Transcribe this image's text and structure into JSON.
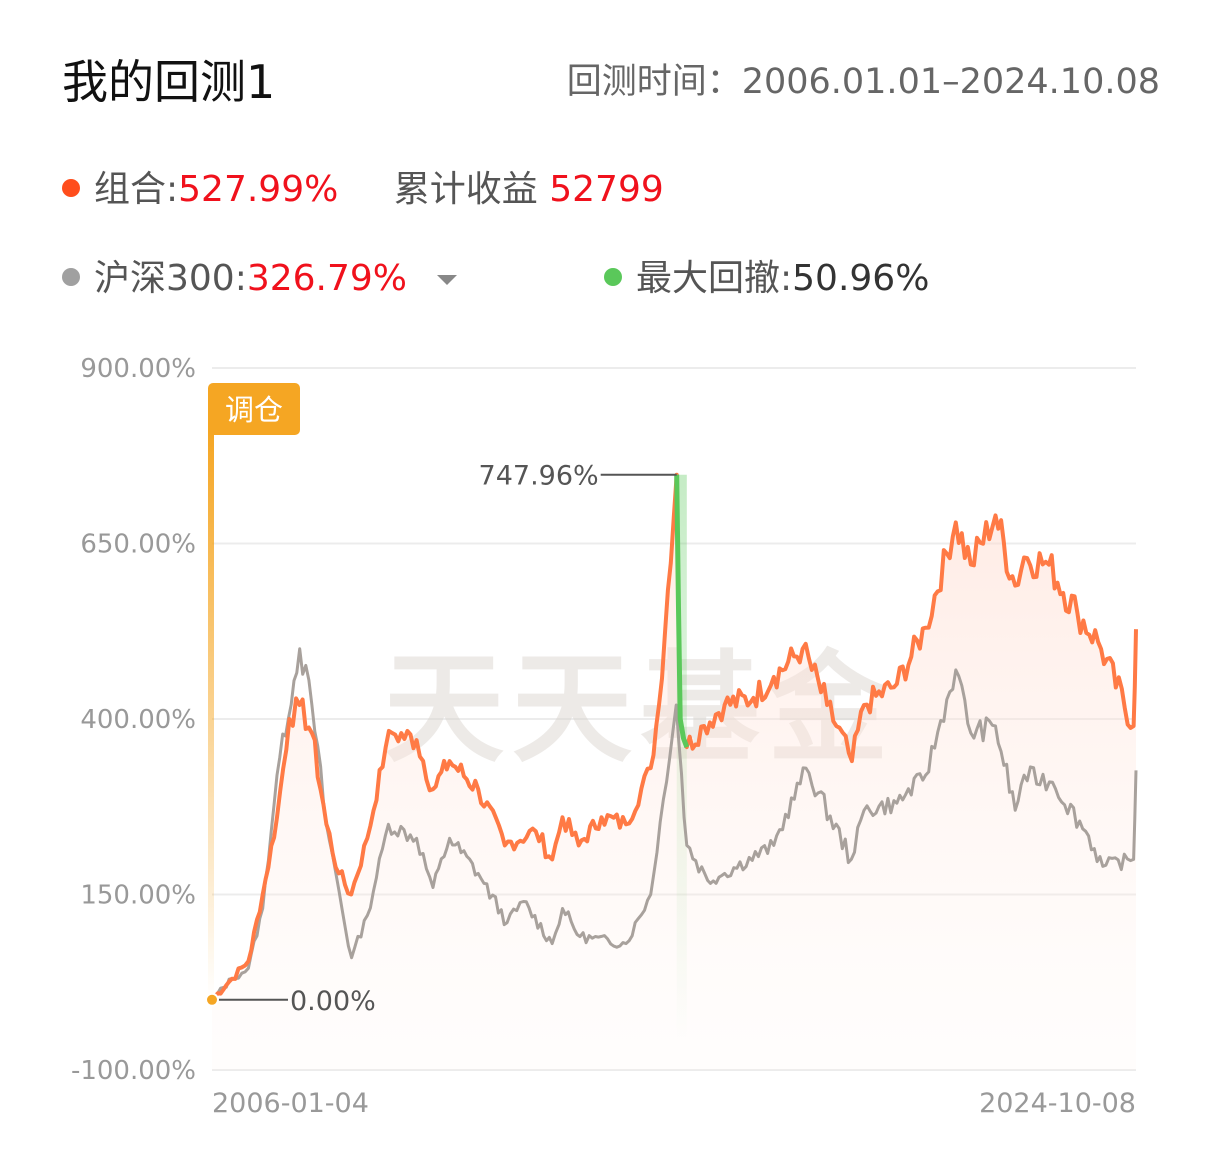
{
  "header": {
    "title": "我的回测1",
    "period_label": "回测时间：",
    "period_value": "2006.01.01–2024.10.08"
  },
  "legend": {
    "portfolio": {
      "label": "组合:",
      "value": "527.99%",
      "color": "#ff4d1c"
    },
    "cumulative": {
      "label": "累计收益",
      "value": "52799"
    },
    "benchmark": {
      "label": "沪深300:",
      "value": "326.79%",
      "color": "#a0a0a0",
      "dropdown_icon": "caret-down-icon"
    },
    "max_drawdown": {
      "label": "最大回撤:",
      "value": "50.96%",
      "color": "#5ac85a"
    }
  },
  "chart_data": {
    "type": "line",
    "x_start": "2006-01-04",
    "x_end": "2024-10-08",
    "xticks": [
      "2006-01-04",
      "2024-10-08"
    ],
    "ylim": [
      -100,
      900
    ],
    "yticks": [
      900,
      650,
      400,
      150,
      -100
    ],
    "ytick_labels": [
      "900.00%",
      "650.00%",
      "400.00%",
      "150.00%",
      "-100.00%"
    ],
    "watermark": "天天基金",
    "rebalance_tag": "调仓",
    "annotations": {
      "max_label": "747.96%",
      "start_label": "0.00%"
    },
    "colors": {
      "portfolio": "#ff7a45",
      "benchmark": "#a8a19c",
      "drawdown": "#5ac85a",
      "tag": "#f5a623"
    },
    "series": [
      {
        "name": "组合",
        "points": [
          [
            "2006-01-04",
            0
          ],
          [
            "2006-06-01",
            30
          ],
          [
            "2006-10-01",
            55
          ],
          [
            "2007-01-15",
            150
          ],
          [
            "2007-05-01",
            260
          ],
          [
            "2007-08-01",
            400
          ],
          [
            "2007-10-15",
            420
          ],
          [
            "2008-01-15",
            380
          ],
          [
            "2008-05-01",
            250
          ],
          [
            "2008-08-01",
            180
          ],
          [
            "2008-11-01",
            150
          ],
          [
            "2009-03-01",
            230
          ],
          [
            "2009-07-15",
            360
          ],
          [
            "2009-09-01",
            380
          ],
          [
            "2010-03-01",
            370
          ],
          [
            "2010-07-01",
            300
          ],
          [
            "2010-11-01",
            340
          ],
          [
            "2011-06-01",
            300
          ],
          [
            "2011-12-15",
            220
          ],
          [
            "2012-08-01",
            240
          ],
          [
            "2012-12-01",
            200
          ],
          [
            "2013-02-15",
            260
          ],
          [
            "2013-06-15",
            220
          ],
          [
            "2013-12-01",
            260
          ],
          [
            "2014-06-01",
            250
          ],
          [
            "2014-12-01",
            330
          ],
          [
            "2015-02-01",
            420
          ],
          [
            "2015-06-12",
            747.96
          ],
          [
            "2015-07-08",
            400
          ],
          [
            "2015-08-26",
            360
          ],
          [
            "2016-01-01",
            390
          ],
          [
            "2016-06-01",
            420
          ],
          [
            "2017-01-01",
            430
          ],
          [
            "2017-06-01",
            460
          ],
          [
            "2018-01-01",
            500
          ],
          [
            "2018-07-01",
            420
          ],
          [
            "2019-01-01",
            340
          ],
          [
            "2019-04-01",
            420
          ],
          [
            "2019-12-01",
            450
          ],
          [
            "2020-07-01",
            530
          ],
          [
            "2021-02-10",
            680
          ],
          [
            "2021-06-01",
            620
          ],
          [
            "2021-12-01",
            690
          ],
          [
            "2022-04-26",
            590
          ],
          [
            "2022-07-01",
            630
          ],
          [
            "2023-01-01",
            620
          ],
          [
            "2023-08-01",
            550
          ],
          [
            "2024-01-01",
            510
          ],
          [
            "2024-09-20",
            390
          ],
          [
            "2024-10-08",
            527.99
          ]
        ]
      },
      {
        "name": "沪深300",
        "points": [
          [
            "2006-01-04",
            0
          ],
          [
            "2006-06-01",
            30
          ],
          [
            "2006-10-01",
            45
          ],
          [
            "2007-01-15",
            130
          ],
          [
            "2007-05-01",
            320
          ],
          [
            "2007-10-16",
            500
          ],
          [
            "2008-01-15",
            420
          ],
          [
            "2008-05-01",
            250
          ],
          [
            "2008-11-04",
            60
          ],
          [
            "2009-03-01",
            120
          ],
          [
            "2009-08-04",
            250
          ],
          [
            "2010-03-01",
            230
          ],
          [
            "2010-07-01",
            160
          ],
          [
            "2010-11-01",
            230
          ],
          [
            "2011-06-01",
            180
          ],
          [
            "2012-01-01",
            110
          ],
          [
            "2012-05-01",
            140
          ],
          [
            "2012-12-01",
            80
          ],
          [
            "2013-02-15",
            130
          ],
          [
            "2013-06-25",
            90
          ],
          [
            "2014-06-01",
            80
          ],
          [
            "2014-12-01",
            150
          ],
          [
            "2015-06-08",
            420
          ],
          [
            "2015-08-26",
            220
          ],
          [
            "2016-01-28",
            170
          ],
          [
            "2016-06-01",
            180
          ],
          [
            "2017-06-01",
            220
          ],
          [
            "2018-01-26",
            330
          ],
          [
            "2018-12-28",
            200
          ],
          [
            "2019-04-01",
            270
          ],
          [
            "2019-12-01",
            280
          ],
          [
            "2020-07-01",
            320
          ],
          [
            "2021-02-10",
            470
          ],
          [
            "2021-06-01",
            380
          ],
          [
            "2021-12-01",
            390
          ],
          [
            "2022-04-26",
            270
          ],
          [
            "2022-07-01",
            320
          ],
          [
            "2023-01-28",
            310
          ],
          [
            "2023-10-01",
            240
          ],
          [
            "2024-02-05",
            190
          ],
          [
            "2024-09-20",
            200
          ],
          [
            "2024-10-08",
            326.79
          ]
        ]
      }
    ],
    "max_drawdown_range": [
      "2015-06-12",
      "2015-08-26"
    ]
  }
}
